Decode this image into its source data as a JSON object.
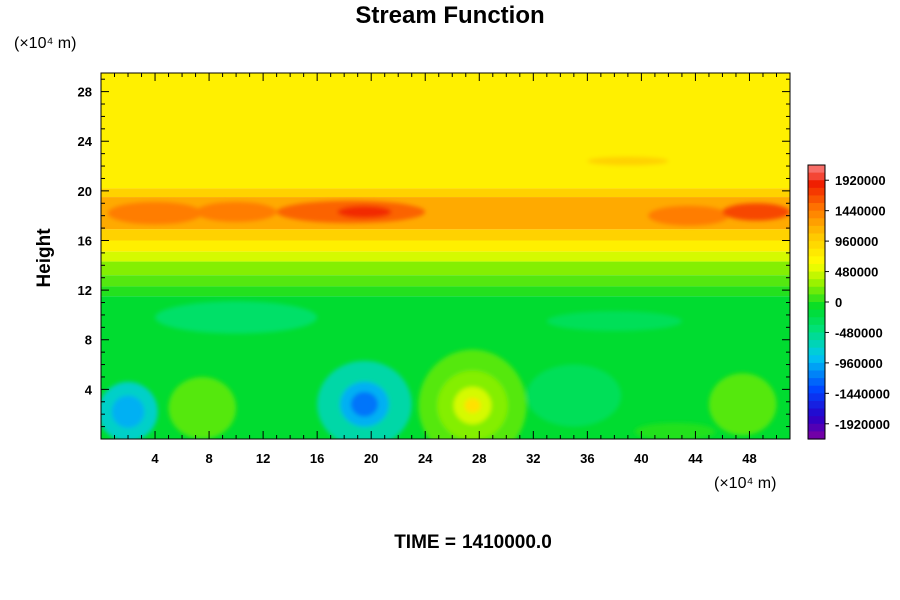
{
  "chart_data": {
    "type": "heatmap",
    "title": "Stream Function",
    "xlabel": "",
    "ylabel": "Height",
    "x_unit": "(×10⁴ m)",
    "y_unit": "(×10⁴ m)",
    "footer_label": "TIME =",
    "footer_value": "1410000.0",
    "xlim": [
      0,
      51
    ],
    "ylim": [
      0,
      29.5
    ],
    "x_ticks": [
      4,
      8,
      12,
      16,
      20,
      24,
      28,
      32,
      36,
      40,
      44,
      48
    ],
    "y_ticks": [
      4,
      8,
      12,
      16,
      20,
      24,
      28
    ],
    "colorbar": {
      "min": -2160000,
      "max": 2160000,
      "labels": [
        1920000,
        1440000,
        960000,
        480000,
        0,
        -480000,
        -960000,
        -1440000,
        -1920000
      ]
    },
    "bands": [
      {
        "y": [
          29.5,
          20.2
        ],
        "value": 720000
      },
      {
        "y": [
          20.2,
          19.5
        ],
        "value": 960000
      },
      {
        "y": [
          19.5,
          16.9
        ],
        "value": 1200000
      },
      {
        "y": [
          16.9,
          16.0
        ],
        "value": 960000
      },
      {
        "y": [
          16.0,
          15.1
        ],
        "value": 720000
      },
      {
        "y": [
          15.1,
          14.3
        ],
        "value": 480000
      },
      {
        "y": [
          14.3,
          13.2
        ],
        "value": 240000
      },
      {
        "y": [
          13.2,
          12.3
        ],
        "value": 120000
      },
      {
        "y": [
          12.3,
          11.5
        ],
        "value": 0
      },
      {
        "y": [
          11.5,
          0
        ],
        "value": -120000
      }
    ],
    "features": [
      {
        "x": 39,
        "y": 22.4,
        "rx": 3.0,
        "ry": 0.35,
        "value": 960000
      },
      {
        "x": 4,
        "y": 18.2,
        "rx": 3.5,
        "ry": 0.9,
        "value": 1440000
      },
      {
        "x": 10,
        "y": 18.3,
        "rx": 3.0,
        "ry": 0.8,
        "value": 1440000
      },
      {
        "x": 18.5,
        "y": 18.3,
        "rx": 5.5,
        "ry": 0.9,
        "value": 1560000
      },
      {
        "x": 19.5,
        "y": 18.3,
        "rx": 2.0,
        "ry": 0.5,
        "value": 1800000
      },
      {
        "x": 43.5,
        "y": 18.0,
        "rx": 3.0,
        "ry": 0.8,
        "value": 1440000
      },
      {
        "x": 48.5,
        "y": 18.3,
        "rx": 2.5,
        "ry": 0.7,
        "value": 1680000
      },
      {
        "x": 10,
        "y": 9.8,
        "rx": 6.0,
        "ry": 1.3,
        "value": -360000
      },
      {
        "x": 38,
        "y": 9.5,
        "rx": 5.0,
        "ry": 0.8,
        "value": -300000
      },
      {
        "x": 2,
        "y": 2.2,
        "rx": 2.2,
        "ry": 2.4,
        "value": -720000
      },
      {
        "x": 2,
        "y": 2.2,
        "rx": 1.2,
        "ry": 1.3,
        "value": -960000
      },
      {
        "x": 7.5,
        "y": 2.5,
        "rx": 2.5,
        "ry": 2.5,
        "value": 120000
      },
      {
        "x": 19.5,
        "y": 2.8,
        "rx": 3.5,
        "ry": 3.5,
        "value": -600000
      },
      {
        "x": 19.5,
        "y": 2.8,
        "rx": 1.8,
        "ry": 1.8,
        "value": -960000
      },
      {
        "x": 19.5,
        "y": 2.8,
        "rx": 1.0,
        "ry": 1.0,
        "value": -1200000
      },
      {
        "x": 27.5,
        "y": 2.7,
        "rx": 4.0,
        "ry": 4.5,
        "value": 120000
      },
      {
        "x": 27.5,
        "y": 2.7,
        "rx": 2.6,
        "ry": 2.8,
        "value": 240000
      },
      {
        "x": 27.5,
        "y": 2.7,
        "rx": 1.4,
        "ry": 1.5,
        "value": 480000
      },
      {
        "x": 27.5,
        "y": 2.7,
        "rx": 0.6,
        "ry": 0.6,
        "value": 840000
      },
      {
        "x": 35,
        "y": 3.5,
        "rx": 3.5,
        "ry": 2.5,
        "value": -300000
      },
      {
        "x": 47.5,
        "y": 2.8,
        "rx": 2.5,
        "ry": 2.5,
        "value": 120000
      },
      {
        "x": 42.5,
        "y": 0.6,
        "rx": 3.0,
        "ry": 0.7,
        "value": 0
      }
    ]
  }
}
